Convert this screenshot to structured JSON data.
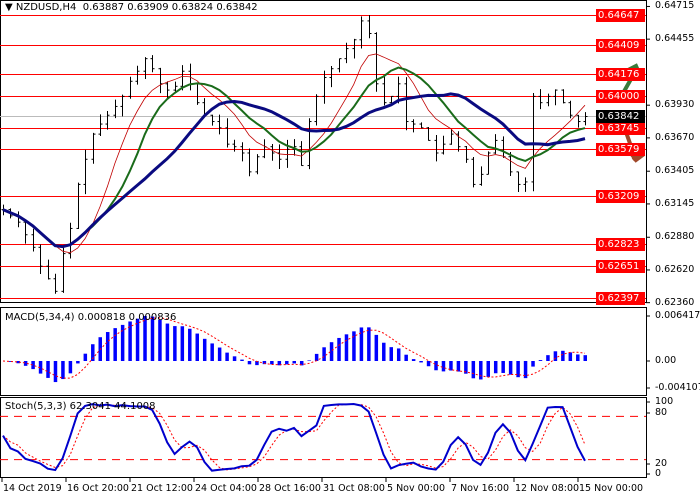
{
  "header": {
    "symbol": "NZDUSD,H4",
    "ohlc": "0.63887 0.63909 0.63824 0.63842",
    "menu_icon": "triangle-down-icon"
  },
  "price_axis": {
    "ticks": [
      "0.64715",
      "0.64455",
      "0.63930",
      "0.63670",
      "0.63405",
      "0.63145",
      "0.62880",
      "0.62620",
      "0.62360"
    ],
    "tick_values": [
      0.64715,
      0.64455,
      0.6393,
      0.6367,
      0.63405,
      0.63145,
      0.6288,
      0.6262,
      0.6236
    ]
  },
  "levels": [
    "0.64647",
    "0.64409",
    "0.64176",
    "0.64000",
    "0.63745",
    "0.63579",
    "0.63209",
    "0.62823",
    "0.62651",
    "0.62397"
  ],
  "current_price": "0.63842",
  "level_color": "#ff0000",
  "arrows": {
    "up": "green-up-arrow-icon",
    "up_color": "#3a7a3a",
    "down": "brown-down-arrow-icon",
    "down_color": "#a0482a"
  },
  "macd": {
    "label": "MACD(5,34,4) 0.000818 0.000836",
    "ticks": [
      "0.006417",
      "0.00",
      "-0.004107"
    ],
    "color": "#0000ff",
    "signal_color": "#ff0000"
  },
  "stoch": {
    "label": "Stoch(5,3,3) 62.3041 44.1008",
    "ticks": [
      "100",
      "80",
      "20",
      "0"
    ],
    "main_color": "#0000cc",
    "signal_color": "#ff0000"
  },
  "time_axis": [
    "14 Oct 2019",
    "16 Oct 20:00",
    "21 Oct 12:00",
    "24 Oct 04:00",
    "28 Oct 16:00",
    "31 Oct 08:00",
    "5 Nov 00:00",
    "7 Nov 16:00",
    "12 Nov 08:00",
    "15 Nov 00:00"
  ],
  "chart_data": {
    "type": "line",
    "series_kind": "ohlc-bars",
    "indicators": [
      "MA fast (green)",
      "MA slow (navy)",
      "MA (red thin)"
    ],
    "closes": [
      0.631,
      0.6305,
      0.63,
      0.629,
      0.628,
      0.6265,
      0.6255,
      0.6245,
      0.6275,
      0.6295,
      0.633,
      0.635,
      0.637,
      0.6378,
      0.6385,
      0.6392,
      0.64,
      0.6412,
      0.642,
      0.643,
      0.6422,
      0.641,
      0.6405,
      0.6408,
      0.642,
      0.641,
      0.6395,
      0.6385,
      0.638,
      0.6375,
      0.6362,
      0.636,
      0.6355,
      0.634,
      0.6352,
      0.636,
      0.6355,
      0.635,
      0.6358,
      0.636,
      0.6345,
      0.638,
      0.64,
      0.6415,
      0.6422,
      0.643,
      0.6438,
      0.6445,
      0.646,
      0.645,
      0.641,
      0.6395,
      0.64,
      0.641,
      0.638,
      0.6378,
      0.6375,
      0.6365,
      0.6355,
      0.6362,
      0.637,
      0.636,
      0.635,
      0.633,
      0.6338,
      0.6355,
      0.6365,
      0.6352,
      0.634,
      0.633,
      0.6332,
      0.64,
      0.6395,
      0.64,
      0.6405,
      0.6395,
      0.6385,
      0.638,
      0.6384
    ]
  }
}
